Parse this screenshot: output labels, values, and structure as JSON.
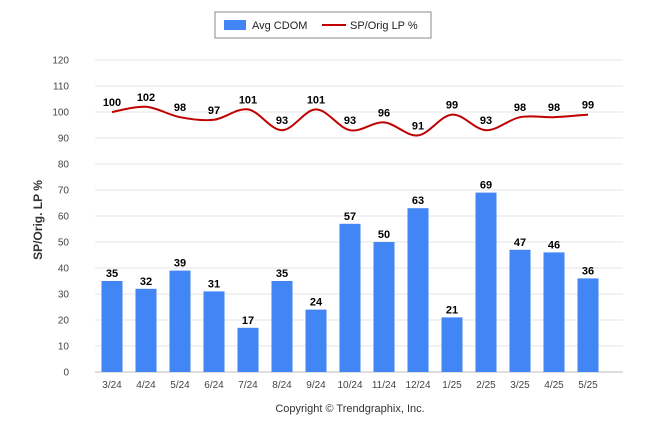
{
  "chart_data": {
    "type": "bar",
    "title": "",
    "xlabel": "",
    "ylabel": "SP/Orig. LP %",
    "ylim": [
      0,
      120
    ],
    "yticks": [
      0,
      10,
      20,
      30,
      40,
      50,
      60,
      70,
      80,
      90,
      100,
      110,
      120
    ],
    "grid": true,
    "legend_position": "top-center",
    "categories": [
      "3/24",
      "4/24",
      "5/24",
      "6/24",
      "7/24",
      "8/24",
      "9/24",
      "10/24",
      "11/24",
      "12/24",
      "1/25",
      "2/25",
      "3/25",
      "4/25",
      "5/25"
    ],
    "series": [
      {
        "name": "Avg CDOM",
        "type": "bar",
        "color": "#4285f4",
        "values": [
          35,
          32,
          39,
          31,
          17,
          35,
          24,
          57,
          50,
          63,
          21,
          69,
          47,
          46,
          36
        ]
      },
      {
        "name": "SP/Orig LP %",
        "type": "line",
        "color": "#c00000",
        "values": [
          100,
          102,
          98,
          97,
          101,
          93,
          101,
          93,
          96,
          91,
          99,
          93,
          98,
          98,
          99
        ]
      }
    ]
  },
  "footer": {
    "copyright": "Copyright © Trendgraphix, Inc."
  }
}
